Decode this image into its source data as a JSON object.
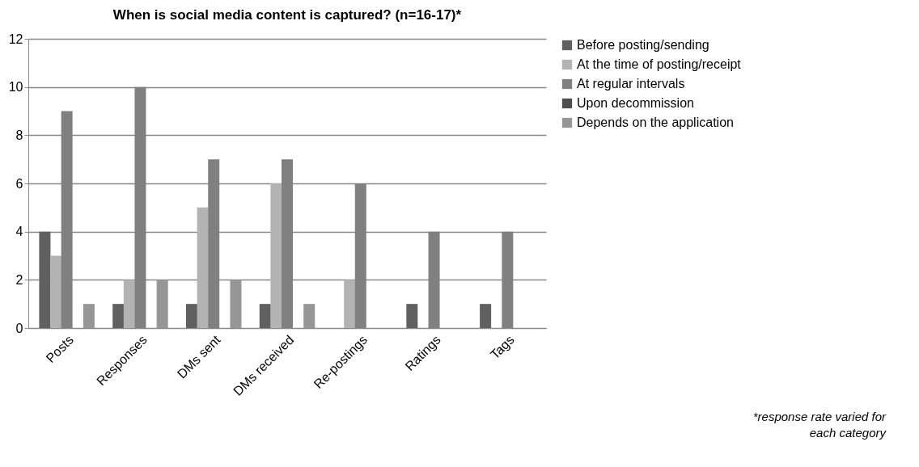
{
  "chart_data": {
    "type": "bar",
    "title": "When is social media content is captured? (n=16-17)*",
    "categories": [
      "Posts",
      "Responses",
      "DMs sent",
      "DMs received",
      "Re-postings",
      "Ratings",
      "Tags"
    ],
    "series": [
      {
        "name": "Before posting/sending",
        "color": "#606060",
        "values": [
          4,
          1,
          1,
          1,
          0,
          1,
          1
        ]
      },
      {
        "name": "At the time of posting/receipt",
        "color": "#b3b3b3",
        "values": [
          3,
          2,
          5,
          6,
          2,
          0,
          0
        ]
      },
      {
        "name": "At regular intervals",
        "color": "#808080",
        "values": [
          9,
          10,
          7,
          7,
          6,
          4,
          4
        ]
      },
      {
        "name": "Upon decommission",
        "color": "#4d4d4d",
        "values": [
          0,
          0,
          0,
          0,
          0,
          0,
          0
        ]
      },
      {
        "name": "Depends on the application",
        "color": "#969696",
        "values": [
          1,
          2,
          2,
          1,
          0,
          0,
          0
        ]
      }
    ],
    "ylim": [
      0,
      12
    ],
    "yticks": [
      0,
      2,
      4,
      6,
      8,
      10,
      12
    ],
    "grid": "y",
    "legend": "right",
    "annotations": [
      "*response rate varied for each category"
    ]
  }
}
